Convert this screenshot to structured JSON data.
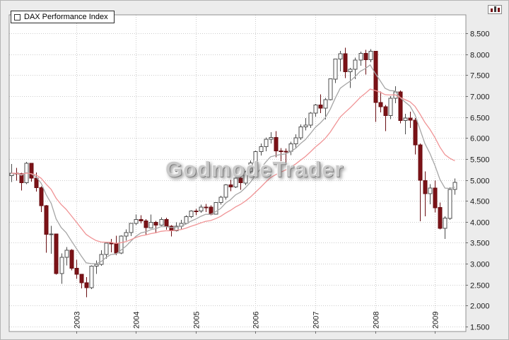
{
  "legend": {
    "label": "DAX Performance Index"
  },
  "watermark": {
    "text": "GodmodeTrader"
  },
  "icons": {
    "corner": "mini-chart-icon",
    "legend_swatch": "series-swatch-icon"
  },
  "panel": {
    "background": "#ececec"
  },
  "chart_data": {
    "type": "candlestick",
    "title": "DAX Performance Index",
    "x_unit": "month",
    "start_month": "2001-12",
    "interval": "1M",
    "grid": true,
    "legend_position": "top-left",
    "y_axis_side": "right",
    "y_range": [
      1500,
      8500
    ],
    "y_ticks": [
      {
        "v": 8500,
        "label": "8.500"
      },
      {
        "v": 8000,
        "label": "8.000"
      },
      {
        "v": 7500,
        "label": "7.500"
      },
      {
        "v": 7000,
        "label": "7.000"
      },
      {
        "v": 6500,
        "label": "6.500"
      },
      {
        "v": 6000,
        "label": "6.000"
      },
      {
        "v": 5500,
        "label": "5.500"
      },
      {
        "v": 5000,
        "label": "5.000"
      },
      {
        "v": 4500,
        "label": "4.500"
      },
      {
        "v": 4000,
        "label": "4.000"
      },
      {
        "v": 3500,
        "label": "3.500"
      },
      {
        "v": 3000,
        "label": "3.000"
      },
      {
        "v": 2500,
        "label": "2.500"
      },
      {
        "v": 2000,
        "label": "2.000"
      },
      {
        "v": 1500,
        "label": "1.500"
      }
    ],
    "year_ticks": [
      {
        "i": 13,
        "label": "2003"
      },
      {
        "i": 25,
        "label": "2004"
      },
      {
        "i": 37,
        "label": "2005"
      },
      {
        "i": 49,
        "label": "2006"
      },
      {
        "i": 61,
        "label": "2007"
      },
      {
        "i": 73,
        "label": "2008"
      },
      {
        "i": 85,
        "label": "2009"
      }
    ],
    "colors": {
      "up_fill": "#ffffff",
      "up_stroke": "#4d4d4d",
      "down_fill": "#7c1217",
      "down_stroke": "#6a0e12",
      "grid": "#cccccc",
      "border": "#909090",
      "axis_text": "#1a1a1a",
      "ma_fast": "#a6a6a6",
      "ma_slow": "#f09496"
    },
    "indicators": [
      {
        "name": "ma-fast-line",
        "type": "ema",
        "period": 8,
        "color_key": "ma_fast"
      },
      {
        "name": "ma-slow-line",
        "type": "ema",
        "period": 18,
        "color_key": "ma_slow"
      }
    ],
    "candles": [
      [
        5100,
        5380,
        4950,
        5160
      ],
      [
        5160,
        5290,
        4985,
        5150
      ],
      [
        5150,
        5170,
        4745,
        4930
      ],
      [
        4930,
        5430,
        4900,
        5397
      ],
      [
        5397,
        5400,
        4960,
        5041
      ],
      [
        5041,
        5180,
        4720,
        4818
      ],
      [
        4818,
        4850,
        4230,
        4383
      ],
      [
        4383,
        4400,
        3265,
        3700
      ],
      [
        3700,
        3900,
        3235,
        3712
      ],
      [
        3712,
        3720,
        2740,
        2769
      ],
      [
        2769,
        3250,
        2519,
        3152
      ],
      [
        3152,
        3400,
        2960,
        3320
      ],
      [
        3320,
        3350,
        2840,
        2893
      ],
      [
        2893,
        3090,
        2640,
        2748
      ],
      [
        2748,
        2760,
        2415,
        2547
      ],
      [
        2547,
        2680,
        2202,
        2424
      ],
      [
        2424,
        2960,
        2390,
        2942
      ],
      [
        2942,
        3080,
        2760,
        2982
      ],
      [
        2982,
        3325,
        2950,
        3221
      ],
      [
        3221,
        3500,
        3120,
        3487
      ],
      [
        3487,
        3590,
        3270,
        3484
      ],
      [
        3484,
        3670,
        3200,
        3257
      ],
      [
        3257,
        3680,
        3230,
        3655
      ],
      [
        3655,
        3820,
        3550,
        3746
      ],
      [
        3746,
        3970,
        3660,
        3965
      ],
      [
        3965,
        4175,
        3920,
        4058
      ],
      [
        4058,
        4160,
        3960,
        4018
      ],
      [
        4018,
        4060,
        3692,
        3857
      ],
      [
        3857,
        4170,
        3850,
        3985
      ],
      [
        3985,
        4020,
        3730,
        3921
      ],
      [
        3921,
        4105,
        3900,
        4053
      ],
      [
        4053,
        4100,
        3815,
        3895
      ],
      [
        3895,
        3920,
        3647,
        3786
      ],
      [
        3786,
        3990,
        3770,
        3893
      ],
      [
        3893,
        4050,
        3815,
        3960
      ],
      [
        3960,
        4160,
        3940,
        4126
      ],
      [
        4126,
        4272,
        4090,
        4256
      ],
      [
        4256,
        4310,
        4160,
        4254
      ],
      [
        4254,
        4410,
        4215,
        4350
      ],
      [
        4350,
        4430,
        4230,
        4348
      ],
      [
        4348,
        4390,
        4157,
        4184
      ],
      [
        4184,
        4470,
        4180,
        4460
      ],
      [
        4460,
        4620,
        4410,
        4586
      ],
      [
        4586,
        4900,
        4530,
        4886
      ],
      [
        4886,
        5000,
        4730,
        4830
      ],
      [
        4830,
        5060,
        4810,
        5044
      ],
      [
        5044,
        5140,
        4762,
        4929
      ],
      [
        4929,
        5220,
        4870,
        5193
      ],
      [
        5193,
        5460,
        5170,
        5408
      ],
      [
        5408,
        5700,
        5370,
        5674
      ],
      [
        5674,
        5870,
        5580,
        5796
      ],
      [
        5796,
        6010,
        5680,
        5970
      ],
      [
        5970,
        6140,
        5870,
        6009
      ],
      [
        6009,
        6162,
        5540,
        5692
      ],
      [
        5692,
        5760,
        5243,
        5683
      ],
      [
        5683,
        5750,
        5400,
        5682
      ],
      [
        5682,
        5910,
        5590,
        5859
      ],
      [
        5859,
        6090,
        5750,
        6004
      ],
      [
        6004,
        6320,
        5950,
        6268
      ],
      [
        6268,
        6480,
        6180,
        6309
      ],
      [
        6309,
        6620,
        6240,
        6597
      ],
      [
        6597,
        6810,
        6510,
        6789
      ],
      [
        6789,
        7040,
        6590,
        6715
      ],
      [
        6715,
        6960,
        6440,
        6917
      ],
      [
        6917,
        7420,
        6900,
        7408
      ],
      [
        7408,
        7890,
        7310,
        7883
      ],
      [
        7883,
        8080,
        7590,
        8007
      ],
      [
        8007,
        8151,
        7430,
        7584
      ],
      [
        7584,
        7670,
        7190,
        7638
      ],
      [
        7638,
        7920,
        7400,
        7861
      ],
      [
        7861,
        8060,
        7720,
        8019
      ],
      [
        8019,
        8100,
        7510,
        7870
      ],
      [
        7870,
        8120,
        7810,
        8067
      ],
      [
        8067,
        8080,
        6384,
        6851
      ],
      [
        6851,
        7110,
        6615,
        6748
      ],
      [
        6748,
        6790,
        6167,
        6535
      ],
      [
        6535,
        7000,
        6450,
        6948
      ],
      [
        6948,
        7231,
        6830,
        7096
      ],
      [
        7096,
        7130,
        6350,
        6418
      ],
      [
        6418,
        6580,
        6090,
        6479
      ],
      [
        6479,
        6630,
        6240,
        6422
      ],
      [
        6422,
        6480,
        5610,
        5831
      ],
      [
        5831,
        5870,
        4015,
        4987
      ],
      [
        4987,
        5200,
        4130,
        4669
      ],
      [
        4669,
        4900,
        4420,
        4810
      ],
      [
        4810,
        4980,
        4220,
        4338
      ],
      [
        4338,
        4460,
        3822,
        3843
      ],
      [
        3843,
        4130,
        3589,
        4085
      ],
      [
        4085,
        4820,
        4050,
        4769
      ],
      [
        4769,
        5030,
        4650,
        4940
      ]
    ]
  }
}
